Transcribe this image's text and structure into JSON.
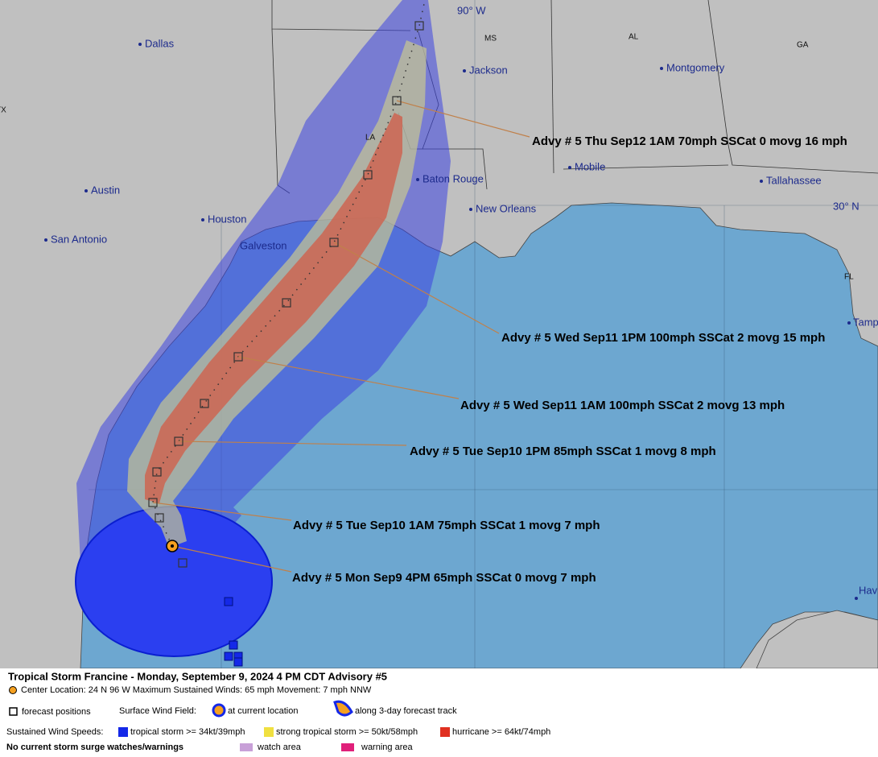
{
  "map": {
    "grid_labels": [
      "90° W",
      "30° N"
    ],
    "states": [
      "MS",
      "AL",
      "GA",
      "TX",
      "LA",
      "FL"
    ],
    "cities": [
      "Dallas",
      "Jackson",
      "Montgomery",
      "Austin",
      "Houston",
      "San Antonio",
      "Galveston",
      "Baton Rouge",
      "New Orleans",
      "Mobile",
      "Tallahassee",
      "Tamp",
      "Hav"
    ],
    "advisories": [
      "Advy # 5 Thu Sep12 1AM  70mph SSCat 0 movg 16 mph",
      "Advy # 5 Wed Sep11 1PM  100mph SSCat 2 movg 15 mph",
      "Advy # 5 Wed Sep11 1AM  100mph SSCat 2 movg 13 mph",
      "Advy # 5 Tue Sep10 1PM  85mph SSCat 1 movg 8 mph",
      "Advy # 5 Tue Sep10 1AM  75mph SSCat 1 movg 7 mph",
      "Advy # 5 Mon Sep9 4PM  65mph SSCat 0 movg 7 mph"
    ]
  },
  "legend": {
    "title": "Tropical Storm Francine  -  Monday, September 9, 2024  4 PM CDT   Advisory #5",
    "info": "Center Location: 24 N  96 W   Maximum Sustained Winds: 65 mph  Movement: 7 mph NNW",
    "forecast_positions": "forecast positions",
    "surface_wind_field": "Surface Wind Field:",
    "current_location": "at current location",
    "forecast_track": "along 3-day forecast track",
    "sustained_wind_speeds": "Sustained Wind Speeds:",
    "tropical_storm": "tropical storm >= 34kt/39mph",
    "strong_tropical_storm": "strong tropical storm >= 50kt/58mph",
    "hurricane": "hurricane >= 64kt/74mph",
    "storm_surge": "No current storm surge watches/warnings",
    "watch_area": "watch area",
    "warning_area": "warning area"
  }
}
